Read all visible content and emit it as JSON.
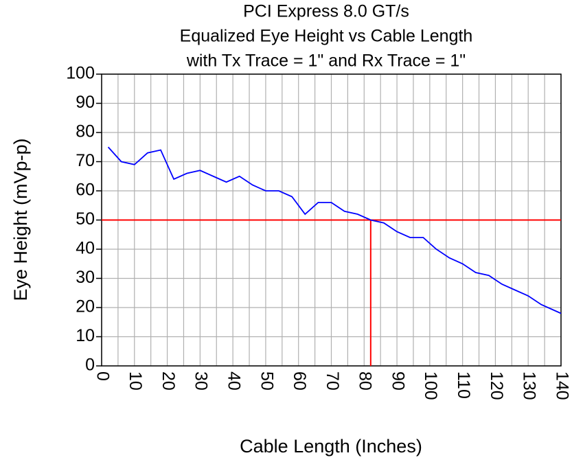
{
  "chart_data": {
    "type": "line",
    "title": [
      "PCI Express 8.0 GT/s",
      "Equalized Eye Height vs Cable Length",
      "with Tx Trace = 1\" and Rx Trace = 1\""
    ],
    "x_label": "Cable Length (Inches)",
    "y_label": "Eye Height (mVp-p)",
    "x": [
      2,
      6,
      10,
      14,
      18,
      22,
      26,
      30,
      34,
      38,
      42,
      46,
      50,
      54,
      58,
      62,
      66,
      70,
      74,
      78,
      82,
      86,
      90,
      94,
      98,
      102,
      106,
      110,
      114,
      118,
      122,
      126,
      130,
      134,
      138,
      140
    ],
    "series": [
      {
        "name": "Eye Height",
        "color": "#0000ff",
        "values": [
          75,
          70,
          69,
          73,
          74,
          64,
          66,
          67,
          65,
          63,
          65,
          62,
          60,
          60,
          58,
          52,
          56,
          56,
          53,
          52,
          50,
          49,
          46,
          44,
          44,
          40,
          37,
          35,
          32,
          31,
          28,
          26,
          24,
          21,
          19,
          18
        ]
      }
    ],
    "reference": {
      "y": 50,
      "x": 82,
      "color": "#ff0000"
    },
    "xlim": [
      0,
      140
    ],
    "xticks": [
      0,
      10,
      20,
      30,
      40,
      50,
      60,
      70,
      80,
      90,
      100,
      110,
      120,
      130,
      140
    ],
    "x_minor_ticks": [
      5,
      15,
      25,
      35,
      45,
      55,
      65,
      75,
      85,
      95,
      105,
      115,
      125,
      135
    ],
    "ylim": [
      0,
      100
    ],
    "yticks": [
      0,
      10,
      20,
      30,
      40,
      50,
      60,
      70,
      80,
      90,
      100
    ],
    "grid": true
  }
}
